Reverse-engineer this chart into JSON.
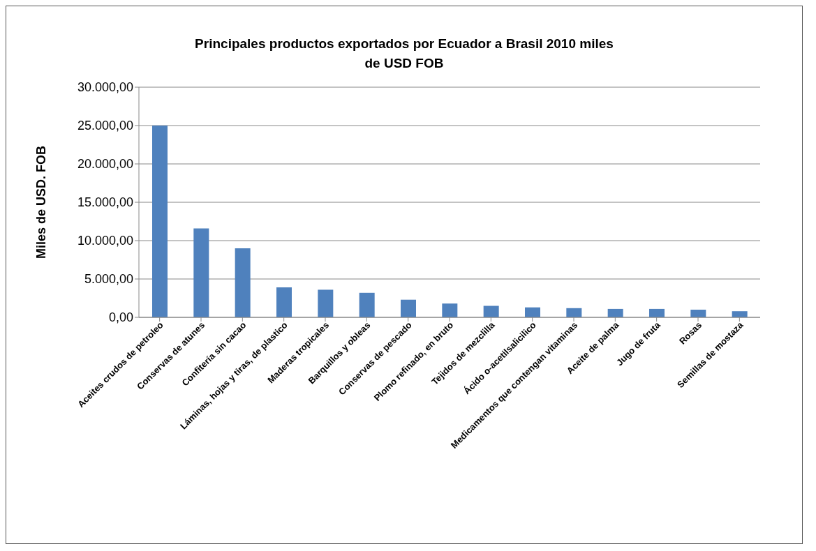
{
  "chart_data": {
    "type": "bar",
    "title": "Principales productos exportados por Ecuador a Brasil  2010 miles de USD FOB",
    "ylabel": "Miles de USD. FOB",
    "categories": [
      "Aceites crudos de petroleo",
      "Conservas de atunes",
      "Confitería sin cacao",
      "Láminas, hojas y tiras, de plastico",
      "Maderas tropicales",
      "Barquillos y obleas",
      "Conservas de pescado",
      "Plomo refinado, en bruto",
      "Tejidos de mezclilla",
      "Ácido o-acetilsalicilico",
      "Medicamentos que contengan vitaminas",
      "Aceite de palma",
      "Jugo de fruta",
      "Rosas",
      "Semillas de mostaza"
    ],
    "values": [
      25000,
      11600,
      9000,
      3900,
      3600,
      3200,
      2300,
      1800,
      1500,
      1300,
      1200,
      1100,
      1100,
      1000,
      800
    ],
    "color": "#4f81bd",
    "ylim": [
      0,
      30000
    ],
    "yticks": [
      {
        "value": 0,
        "label": "0,00"
      },
      {
        "value": 5000,
        "label": "5.000,00"
      },
      {
        "value": 10000,
        "label": "10.000,00"
      },
      {
        "value": 15000,
        "label": "15.000,00"
      },
      {
        "value": 20000,
        "label": "20.000,00"
      },
      {
        "value": 25000,
        "label": "25.000,00"
      },
      {
        "value": 30000,
        "label": "30.000,00"
      }
    ],
    "grid": "y",
    "legend": false
  }
}
